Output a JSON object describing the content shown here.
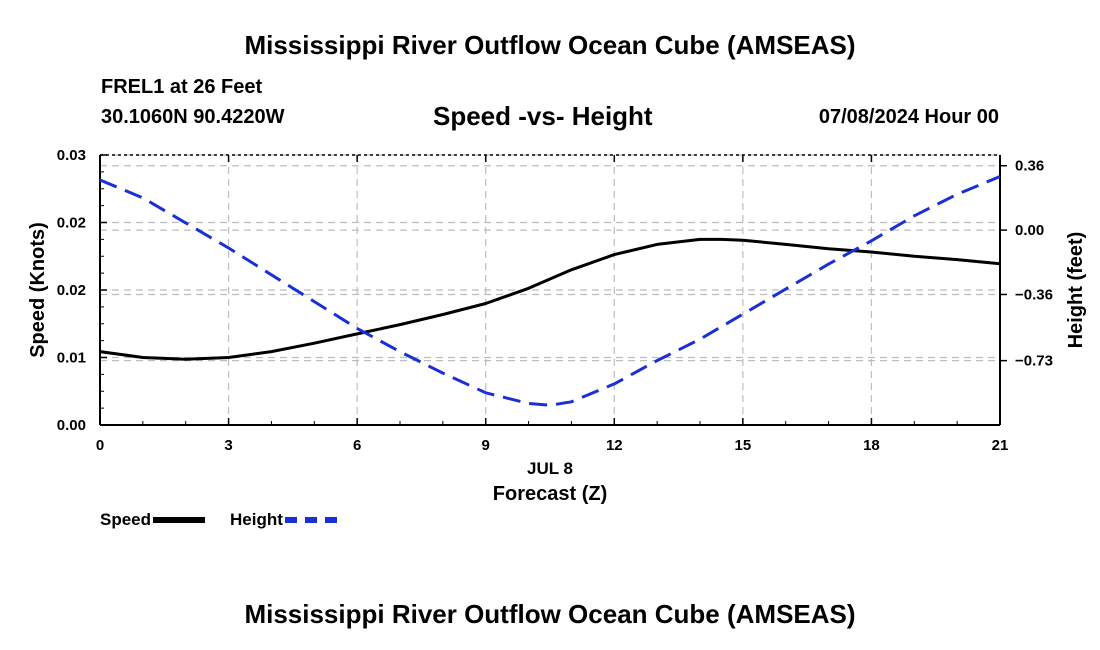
{
  "header": {
    "title": "Mississippi River Outflow Ocean Cube (AMSEAS)",
    "station": "FREL1 at 26 Feet",
    "coords": "30.1060N  90.4220W",
    "subtitle": "Speed -vs- Height",
    "datetime": "07/08/2024 Hour 00"
  },
  "footer": {
    "title": "Mississippi River Outflow Ocean Cube (AMSEAS)"
  },
  "legend": {
    "speed_label": "Speed",
    "height_label": "Height"
  },
  "colors": {
    "speed": "#000000",
    "height": "#1a2fd6",
    "grid": "#bdbdbd"
  },
  "chart_data": {
    "type": "line",
    "title": "Speed -vs- Height",
    "xlabel": "Forecast (Z)",
    "xdate_label": "JUL 8",
    "ylabel_left": "Speed (Knots)",
    "ylabel_right": "Height (feet)",
    "x_ticks": [
      0,
      3,
      6,
      9,
      12,
      15,
      18,
      21
    ],
    "xlim": [
      0,
      21
    ],
    "left_ylim": [
      0,
      0.032
    ],
    "left_ticks": [
      {
        "value": 0.0,
        "label": "0.00"
      },
      {
        "value": 0.008,
        "label": "0.01"
      },
      {
        "value": 0.016,
        "label": "0.02"
      },
      {
        "value": 0.024,
        "label": "0.02"
      },
      {
        "value": 0.032,
        "label": "0.03"
      }
    ],
    "right_ylim": [
      -1.09,
      0.42
    ],
    "right_ticks": [
      {
        "value": 0.36,
        "label": "0.36"
      },
      {
        "value": 0.0,
        "label": "0.00"
      },
      {
        "value": -0.36,
        "label": "−0.36"
      },
      {
        "value": -0.73,
        "label": "−0.73"
      }
    ],
    "series": [
      {
        "name": "Speed",
        "axis": "left",
        "style": "solid",
        "x": [
          0,
          1,
          2,
          3,
          4,
          5,
          6,
          7,
          8,
          9,
          10,
          11,
          12,
          13,
          14,
          14.5,
          15,
          16,
          17,
          18,
          19,
          20,
          21
        ],
        "values": [
          0.0087,
          0.008,
          0.0078,
          0.008,
          0.0087,
          0.0097,
          0.0108,
          0.0119,
          0.0131,
          0.0144,
          0.0162,
          0.0184,
          0.0202,
          0.0214,
          0.022,
          0.022,
          0.0219,
          0.0214,
          0.0209,
          0.0205,
          0.02,
          0.0196,
          0.0191
        ]
      },
      {
        "name": "Height",
        "axis": "right",
        "style": "dashed",
        "x": [
          0,
          1,
          2,
          3,
          4,
          5,
          6,
          7,
          8,
          9,
          10,
          10.5,
          11,
          12,
          13,
          14,
          15,
          16,
          17,
          18,
          19,
          20,
          21
        ],
        "values": [
          0.28,
          0.18,
          0.04,
          -0.1,
          -0.25,
          -0.4,
          -0.55,
          -0.68,
          -0.8,
          -0.91,
          -0.97,
          -0.98,
          -0.96,
          -0.86,
          -0.73,
          -0.61,
          -0.47,
          -0.33,
          -0.19,
          -0.06,
          0.08,
          0.2,
          0.3
        ]
      }
    ]
  }
}
